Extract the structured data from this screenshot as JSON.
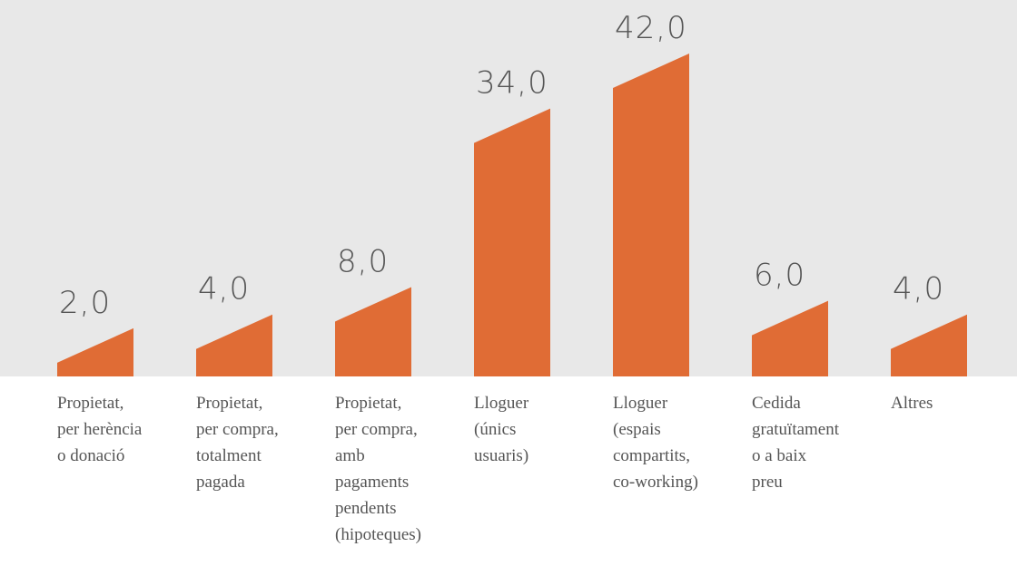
{
  "chart_data": {
    "type": "bar",
    "categories": [
      "Propietat, per herència o donació",
      "Propietat, per compra, totalment pagada",
      "Propietat, per compra, amb pagaments pendents (hipoteques)",
      "Lloguer (únics usuaris)",
      "Lloguer (espais compartits, co-working)",
      "Cedida gratuïtament o a baix preu",
      "Altres"
    ],
    "values": [
      2,
      4,
      8,
      34,
      42,
      6,
      4
    ],
    "value_labels": [
      "2,0",
      "4,0",
      "8,0",
      "34,0",
      "42,0",
      "6,0",
      "4,0"
    ],
    "color": "#e06c35"
  }
}
